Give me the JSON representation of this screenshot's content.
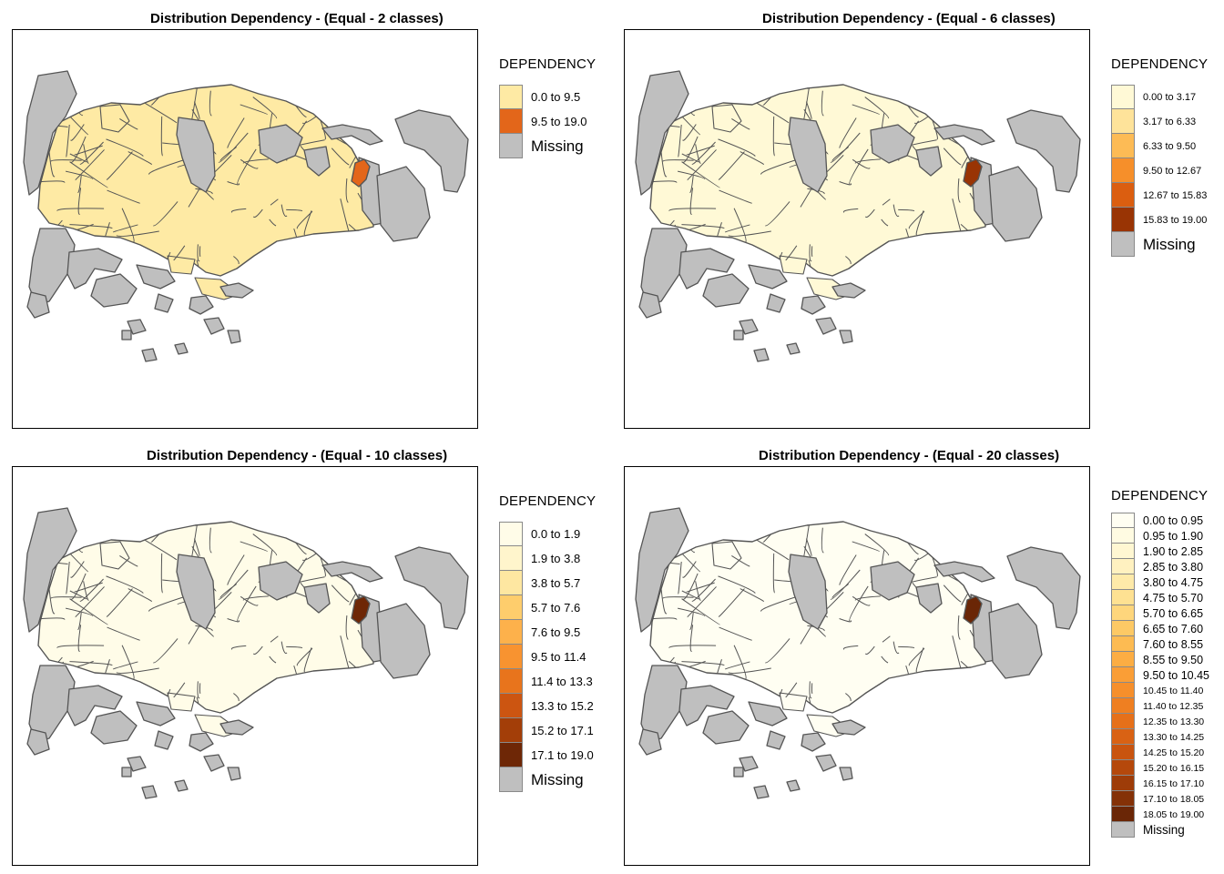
{
  "colors": {
    "missing": "#bfbfbf",
    "boundary": "#555555",
    "frame": "#000000"
  },
  "panels": [
    {
      "title": "Distribution Dependency - (Equal - 2 classes)",
      "legend_title": "DEPENDENCY",
      "missing_label": "Missing",
      "classes": [
        {
          "label": "0.0 to 9.5",
          "color": "#feeaa4"
        },
        {
          "label": "9.5 to 19.0",
          "color": "#e3661a"
        }
      ],
      "base_fill": "#feeaa4",
      "top_fill": "#e3661a"
    },
    {
      "title": "Distribution Dependency - (Equal - 6 classes)",
      "legend_title": "DEPENDENCY",
      "missing_label": "Missing",
      "classes": [
        {
          "label": "0.00 to 3.17",
          "color": "#fff9d6"
        },
        {
          "label": "3.17 to 6.33",
          "color": "#fee39a"
        },
        {
          "label": "6.33 to 9.50",
          "color": "#fdbb55"
        },
        {
          "label": "9.50 to 12.67",
          "color": "#f68f2a"
        },
        {
          "label": "12.67 to 15.83",
          "color": "#db5e10"
        },
        {
          "label": "15.83 to 19.00",
          "color": "#993404"
        }
      ],
      "base_fill": "#fff9d6",
      "top_fill": "#993404"
    },
    {
      "title": "Distribution Dependency - (Equal - 10 classes)",
      "legend_title": "DEPENDENCY",
      "missing_label": "Missing",
      "classes": [
        {
          "label": "0.0 to 1.9",
          "color": "#fffce8"
        },
        {
          "label": "1.9 to 3.8",
          "color": "#fff5cc"
        },
        {
          "label": "3.8 to 5.7",
          "color": "#fee7a1"
        },
        {
          "label": "5.7 to 7.6",
          "color": "#fecd6c"
        },
        {
          "label": "7.6 to 9.5",
          "color": "#fdb14b"
        },
        {
          "label": "9.5 to 11.4",
          "color": "#f89330"
        },
        {
          "label": "11.4 to 13.3",
          "color": "#e8741c"
        },
        {
          "label": "13.3 to 15.2",
          "color": "#cc5511"
        },
        {
          "label": "15.2 to 17.1",
          "color": "#a33e08"
        },
        {
          "label": "17.1 to 19.0",
          "color": "#6e2706"
        }
      ],
      "base_fill": "#fffce8",
      "top_fill": "#6e2706"
    },
    {
      "title": "Distribution Dependency - (Equal - 20 classes)",
      "legend_title": "DEPENDENCY",
      "missing_label": "Missing",
      "classes": [
        {
          "label": "0.00 to 0.95",
          "color": "#fffef2"
        },
        {
          "label": "0.95 to 1.90",
          "color": "#fffbe2"
        },
        {
          "label": "1.90 to 2.85",
          "color": "#fff7d2"
        },
        {
          "label": "2.85 to 3.80",
          "color": "#fff1c0"
        },
        {
          "label": "3.80 to 4.75",
          "color": "#feeaa9"
        },
        {
          "label": "4.75 to 5.70",
          "color": "#fee192"
        },
        {
          "label": "5.70 to 6.65",
          "color": "#fed67c"
        },
        {
          "label": "6.65 to 7.60",
          "color": "#fdc965"
        },
        {
          "label": "7.60 to 8.55",
          "color": "#fdbb52"
        },
        {
          "label": "8.55 to 9.50",
          "color": "#fcad43"
        },
        {
          "label": "9.50 to 10.45",
          "color": "#fa9e36"
        },
        {
          "label": "10.45 to 11.40",
          "color": "#f68f2b"
        },
        {
          "label": "11.40 to 12.35",
          "color": "#ef7f21"
        },
        {
          "label": "12.35 to 13.30",
          "color": "#e6701a"
        },
        {
          "label": "13.30 to 14.25",
          "color": "#d96214"
        },
        {
          "label": "14.25 to 15.20",
          "color": "#c9540f"
        },
        {
          "label": "15.20 to 16.15",
          "color": "#b5480b"
        },
        {
          "label": "16.15 to 17.10",
          "color": "#9e3c08"
        },
        {
          "label": "17.10 to 18.05",
          "color": "#843107"
        },
        {
          "label": "18.05 to 19.00",
          "color": "#6a2606"
        }
      ],
      "base_fill": "#fffef2",
      "top_fill": "#6a2606"
    }
  ]
}
